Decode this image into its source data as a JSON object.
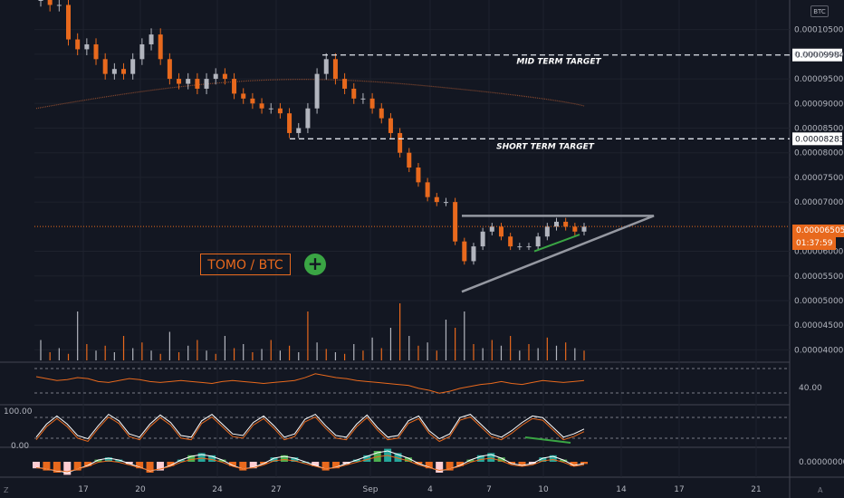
{
  "badge": "BTC",
  "pair_label": "TOMO / BTC",
  "plus_symbol": "+",
  "z_button": "Z",
  "a_button": "A",
  "current_price": "0.00006505",
  "countdown": "01:37:59",
  "colors": {
    "background": "#131722",
    "up": "#b2b5be",
    "down": "#e8691d",
    "grid": "#1e222d",
    "accent_green": "#3aa544",
    "triangle": "#9598a1",
    "ma": "#8a4a2f"
  },
  "chart_data": [
    {
      "type": "candlestick",
      "title": "",
      "y_ticks": [
        "0.00010500",
        "0.00010000",
        "0.00009500",
        "0.00009000",
        "0.00008500",
        "0.00008000",
        "0.00007500",
        "0.00007000",
        "0.00006000",
        "0.00005500",
        "0.00005000",
        "0.00004500",
        "0.00004000"
      ],
      "x_ticks": [
        "17",
        "20",
        "24",
        "27",
        "Sep",
        "4",
        "7",
        "10",
        "14",
        "17",
        "21"
      ],
      "ylim": [
        3.75e-05,
        0.000111
      ],
      "target_lines": [
        {
          "label": "MID TERM TARGET",
          "price": "0.00009984",
          "value": 9.984e-05
        },
        {
          "label": "SHORT TERM TARGET",
          "price": "0.00008283",
          "value": 8.283e-05
        }
      ],
      "last_price_value": 6.505e-05,
      "ma_curve": {
        "x": [
          "15 Aug",
          "24 Aug",
          "28 Aug",
          "4 Sep",
          "12 Sep"
        ],
        "y": [
          8.9e-05,
          9.55e-05,
          9.6e-05,
          9.35e-05,
          8.95e-05
        ]
      },
      "triangle": {
        "apex": [
          "15 Sep",
          6.72e-05
        ],
        "top_left": [
          "5 Sep",
          6.72e-05
        ],
        "bottom_left": [
          "5 Sep",
          5.18e-05
        ]
      },
      "close_series": [
        0.000111,
        0.00011,
        0.00011,
        0.000103,
        0.000101,
        0.000102,
        9.9e-05,
        9.6e-05,
        9.7e-05,
        9.6e-05,
        9.9e-05,
        0.000102,
        0.000104,
        9.9e-05,
        9.5e-05,
        9.4e-05,
        9.5e-05,
        9.3e-05,
        9.5e-05,
        9.6e-05,
        9.5e-05,
        9.2e-05,
        9.1e-05,
        9e-05,
        8.9e-05,
        8.9e-05,
        8.8e-05,
        8.4e-05,
        8.5e-05,
        8.9e-05,
        9.6e-05,
        9.9e-05,
        9.5e-05,
        9.3e-05,
        9.1e-05,
        9.1e-05,
        8.9e-05,
        8.7e-05,
        8.4e-05,
        8e-05,
        7.7e-05,
        7.4e-05,
        7.1e-05,
        7e-05,
        7e-05,
        6.2e-05,
        5.8e-05,
        6.1e-05,
        6.4e-05,
        6.5e-05,
        6.3e-05,
        6.1e-05,
        6.1e-05,
        6.1e-05,
        6.3e-05,
        6.5e-05,
        6.6e-05,
        6.5e-05,
        6.4e-05,
        6.5e-05
      ]
    },
    {
      "type": "line",
      "title": "",
      "y_ticks": [
        "40.00"
      ],
      "values": [
        52,
        50,
        48,
        49,
        51,
        50,
        47,
        46,
        48,
        50,
        49,
        47,
        46,
        47,
        48,
        47,
        46,
        45,
        47,
        48,
        47,
        46,
        45,
        46,
        47,
        48,
        51,
        55,
        53,
        51,
        50,
        48,
        47,
        46,
        45,
        44,
        43,
        40,
        38,
        35,
        37,
        40,
        42,
        44,
        45,
        47,
        45,
        44,
        46,
        48,
        47,
        46,
        47,
        48
      ]
    },
    {
      "type": "line",
      "title": "",
      "y_ticks": [
        "100.00",
        "0.00"
      ],
      "values": [
        20,
        60,
        85,
        60,
        25,
        15,
        55,
        90,
        70,
        30,
        20,
        60,
        88,
        65,
        25,
        20,
        70,
        90,
        60,
        30,
        25,
        65,
        85,
        55,
        20,
        30,
        75,
        90,
        55,
        25,
        20,
        60,
        88,
        50,
        20,
        25,
        70,
        85,
        40,
        15,
        30,
        80,
        90,
        60,
        30,
        20,
        40,
        65,
        85,
        80,
        50,
        20,
        30,
        45
      ]
    },
    {
      "type": "bar",
      "title": "",
      "y_ticks": [
        "0.00000000"
      ],
      "values": [
        -3,
        -4,
        -5,
        -6,
        -4,
        -2,
        1,
        2,
        1,
        -1,
        -3,
        -5,
        -4,
        -2,
        1,
        3,
        4,
        3,
        1,
        -2,
        -4,
        -3,
        -1,
        2,
        3,
        2,
        0,
        -2,
        -4,
        -3,
        -1,
        1,
        3,
        5,
        6,
        4,
        2,
        -1,
        -3,
        -5,
        -4,
        -2,
        1,
        3,
        4,
        2,
        -1,
        -2,
        -1,
        2,
        3,
        1,
        -2,
        -1
      ]
    }
  ]
}
